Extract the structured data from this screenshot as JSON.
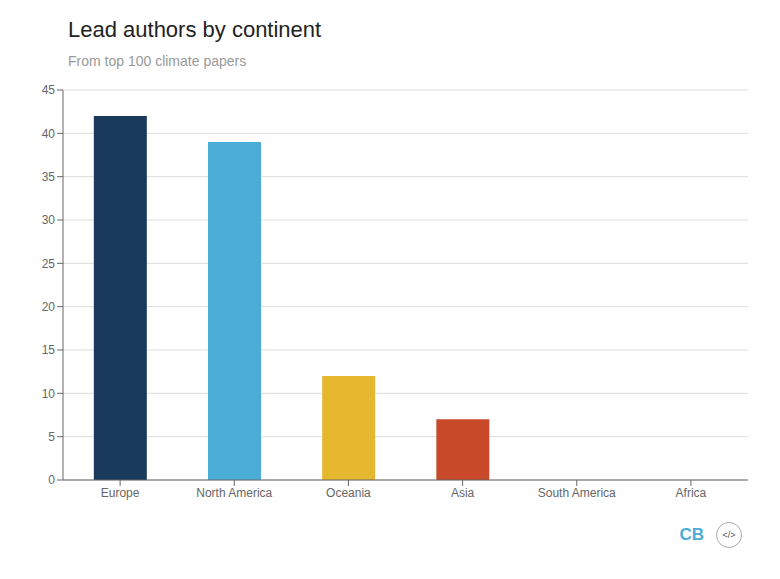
{
  "chart_data": {
    "type": "bar",
    "title": "Lead authors by continent",
    "subtitle": "From top 100 climate papers",
    "categories": [
      "Europe",
      "North America",
      "Oceania",
      "Asia",
      "South America",
      "Africa"
    ],
    "values": [
      42,
      39,
      12,
      7,
      0,
      0
    ],
    "colors": [
      "#1a3a5c",
      "#4bacd6",
      "#e6b830",
      "#c94a2a",
      "#cccccc",
      "#cccccc"
    ],
    "ylim": [
      0,
      45
    ],
    "yticks": [
      0,
      5,
      10,
      15,
      20,
      25,
      30,
      35,
      40,
      45
    ],
    "grid": true,
    "annotations": [
      "CB",
      "</>"
    ]
  }
}
